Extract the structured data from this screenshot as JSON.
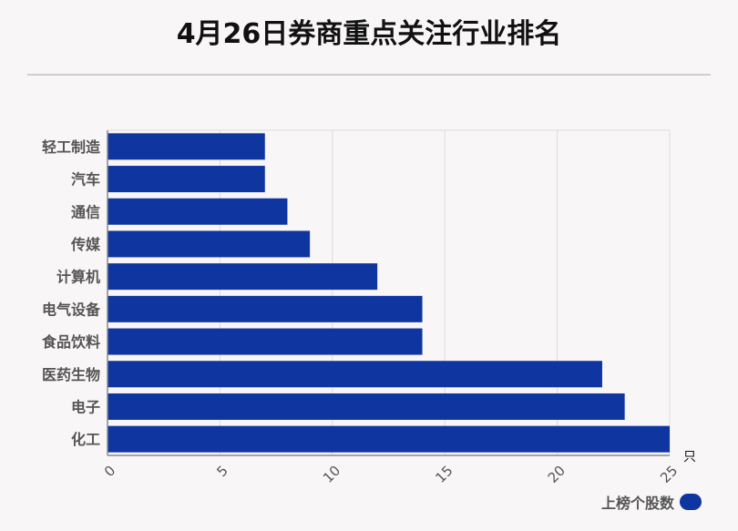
{
  "colors": {
    "bar": "#0f35a1",
    "grid": "#dcdcdc",
    "axis": "#888888",
    "label": "#555555",
    "title": "#111111"
  },
  "chart_data": {
    "type": "bar",
    "orientation": "horizontal",
    "title": "4月26日券商重点关注行业排名",
    "unit": "只",
    "categories": [
      "轻工制造",
      "汽车",
      "通信",
      "传媒",
      "计算机",
      "电气设备",
      "食品饮料",
      "医药生物",
      "电子",
      "化工"
    ],
    "series": [
      {
        "name": "上榜个股数",
        "values": [
          7,
          7,
          8,
          9,
          12,
          14,
          14,
          22,
          23,
          25
        ]
      }
    ],
    "xlim": [
      0,
      25
    ],
    "xticks": [
      "0",
      "5",
      "10",
      "15",
      "20",
      "25"
    ],
    "grid": true,
    "legend_position": "bottom-right"
  }
}
